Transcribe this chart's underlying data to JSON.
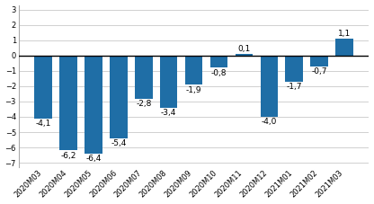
{
  "categories": [
    "2020M03",
    "2020M04",
    "2020M05",
    "2020M06",
    "2020M07",
    "2020M08",
    "2020M09",
    "2020M10",
    "2020M11",
    "2020M12",
    "2021M01",
    "2021M02",
    "2021M03"
  ],
  "values": [
    -4.1,
    -6.2,
    -6.4,
    -5.4,
    -2.8,
    -3.4,
    -1.9,
    -0.8,
    0.1,
    -4.0,
    -1.7,
    -0.7,
    1.1
  ],
  "bar_color": "#1F6EA6",
  "ylim": [
    -7.3,
    3.3
  ],
  "yticks": [
    -7,
    -6,
    -5,
    -4,
    -3,
    -2,
    -1,
    0,
    1,
    2,
    3
  ],
  "grid_color": "#d0d0d0",
  "background_color": "#ffffff",
  "label_fontsize": 6.5,
  "tick_fontsize": 6.0,
  "bar_width": 0.7
}
